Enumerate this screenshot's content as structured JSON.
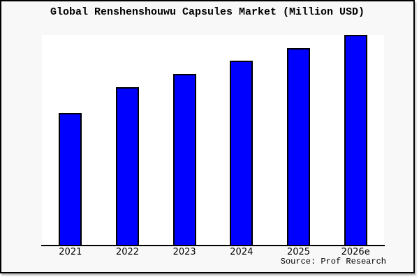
{
  "title": "Global Renshenshouwu Capsules Market (Million USD)",
  "source_label": "Source: Prof Research",
  "colors": {
    "bar_fill": "#0000ff",
    "bar_border": "#000000",
    "figure_background": "#f8f8f8",
    "plot_background": "#ffffff",
    "frame_border": "#000000",
    "text": "#000000"
  },
  "chart_data": {
    "type": "bar",
    "title": "Global Renshenshouwu Capsules Market (Million USD)",
    "categories": [
      "2021",
      "2022",
      "2023",
      "2024",
      "2025",
      "2026e"
    ],
    "values": [
      62.8,
      75.1,
      81.4,
      87.7,
      93.7,
      100
    ],
    "value_note": "No y-axis ticks or labels are shown in the chart; values are estimated bar heights as a percentage of the tallest (2026e) bar, which reaches the top of the plot area.",
    "xlabel": "",
    "ylabel": "",
    "ylim": [
      0,
      100
    ],
    "grid": false,
    "legend": null,
    "source_label": "Source: Prof Research"
  }
}
